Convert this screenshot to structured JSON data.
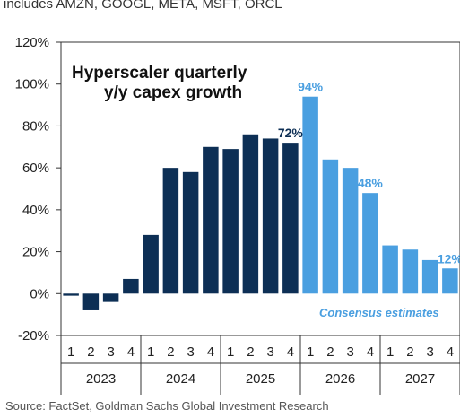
{
  "header": {
    "subtitle": "includes AMZN, GOOGL, META, MSFT, ORCL"
  },
  "footer": {
    "source": "Source: FactSet, Goldman Sachs Global Investment Research"
  },
  "colors": {
    "actual": "#0d2f55",
    "estimate": "#4a9fe0",
    "axis": "#333333"
  },
  "chart_data": {
    "type": "bar",
    "title": [
      "Hyperscaler quarterly",
      "y/y capex growth"
    ],
    "annotation": "Consensus estimates",
    "yticks": [
      "120%",
      "100%",
      "80%",
      "60%",
      "40%",
      "20%",
      "0%",
      "-20%"
    ],
    "ylim": [
      -20,
      120
    ],
    "quarter_labels": [
      "1",
      "2",
      "3",
      "4",
      "1",
      "2",
      "3",
      "4",
      "1",
      "2",
      "3",
      "4",
      "1",
      "2",
      "3",
      "4",
      "1",
      "2",
      "3",
      "4"
    ],
    "years": [
      "2023",
      "2024",
      "2025",
      "2026",
      "2027"
    ],
    "values": [
      -1,
      -8,
      -4,
      7,
      28,
      60,
      58,
      70,
      69,
      76,
      74,
      72,
      94,
      64,
      60,
      48,
      23,
      21,
      16,
      12
    ],
    "series_type": [
      "actual",
      "actual",
      "actual",
      "actual",
      "actual",
      "actual",
      "actual",
      "actual",
      "actual",
      "actual",
      "actual",
      "actual",
      "estimate",
      "estimate",
      "estimate",
      "estimate",
      "estimate",
      "estimate",
      "estimate",
      "estimate"
    ],
    "data_labels": [
      {
        "index": 11,
        "text": "72%"
      },
      {
        "index": 12,
        "text": "94%"
      },
      {
        "index": 15,
        "text": "48%"
      },
      {
        "index": 19,
        "text": "12%"
      }
    ]
  }
}
